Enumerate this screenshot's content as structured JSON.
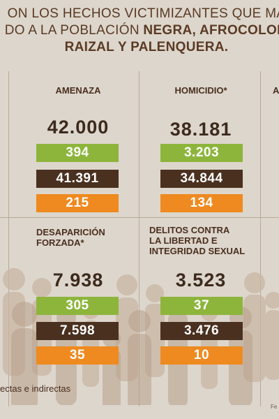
{
  "header": {
    "line1": "ON LOS HECHOS VICTIMIZANTES QUE MA",
    "line2_prefix": "DO A LA POBLACIÓN ",
    "line2_highlight": "NEGRA, AFROCOLOM",
    "line3": "RAIZAL Y PALENQUERA."
  },
  "cells": [
    {
      "title": "AMENAZA",
      "total": "42.000",
      "green": "394",
      "brown": "41.391",
      "orange": "215"
    },
    {
      "title": "HOMICIDIO*",
      "total": "38.181",
      "green": "3.203",
      "brown": "34.844",
      "orange": "134"
    },
    {
      "title": "DESAPARICIÓN\nFORZADA*",
      "total": "7.938",
      "green": "305",
      "brown": "7.598",
      "orange": "35"
    },
    {
      "title": "DELITOS CONTRA\nLA LIBERTAD E\nINTEGRIDAD SEXUAL",
      "total": "3.523",
      "green": "37",
      "brown": "3.476",
      "orange": "10"
    }
  ],
  "partial_title": "A",
  "footer_note": "ectas e indirectas",
  "source": "Fe",
  "colors": {
    "background": "#ddd6cc",
    "green": "#8db53c",
    "brown": "#4a301f",
    "orange": "#ee8a1f"
  }
}
